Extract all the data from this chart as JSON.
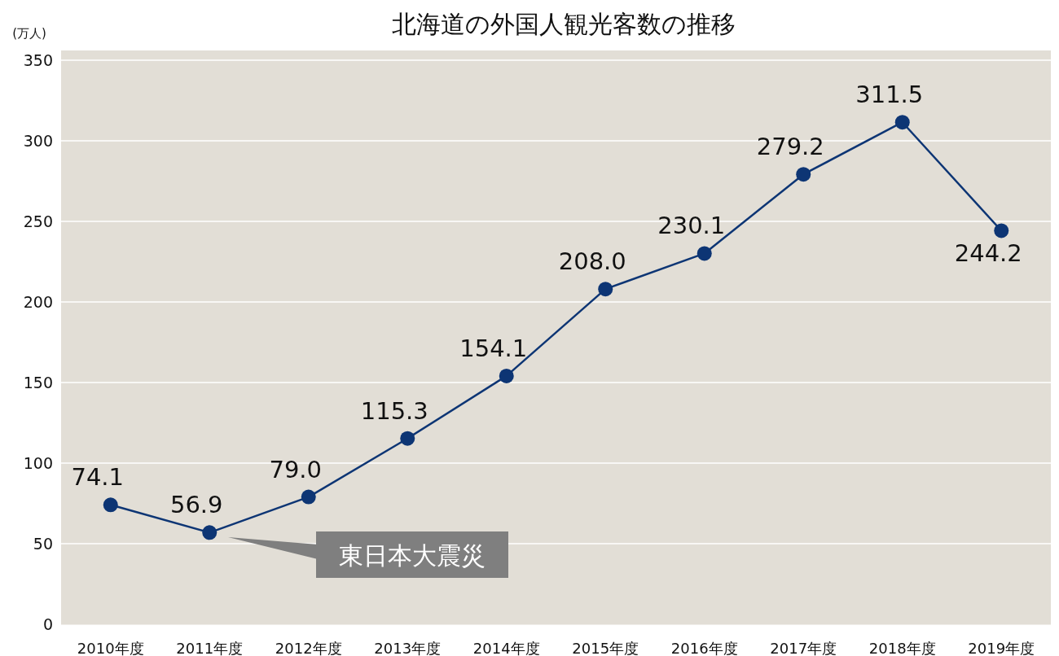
{
  "chart_data": {
    "type": "line",
    "title": "北海道の外国人観光客数の推移",
    "ylabel": "(万人)",
    "categories": [
      "2010年度",
      "2011年度",
      "2012年度",
      "2013年度",
      "2014年度",
      "2015年度",
      "2016年度",
      "2017年度",
      "2018年度",
      "2019年度"
    ],
    "series": [
      {
        "color": "#0d3574",
        "values": [
          74.1,
          56.9,
          79.0,
          115.3,
          154.1,
          208.0,
          230.1,
          279.2,
          311.5,
          244.2
        ],
        "value_labels": [
          "74.1",
          "56.9",
          "79.0",
          "115.3",
          "154.1",
          "208.0",
          "230.1",
          "279.2",
          "311.5",
          "244.2"
        ]
      }
    ],
    "ylim": [
      0,
      350
    ],
    "yticks": [
      0,
      50,
      100,
      150,
      200,
      250,
      300,
      350
    ],
    "grid": "y",
    "marker": "circle",
    "line_style": "solid",
    "annotations": [
      "東日本大震災"
    ]
  }
}
